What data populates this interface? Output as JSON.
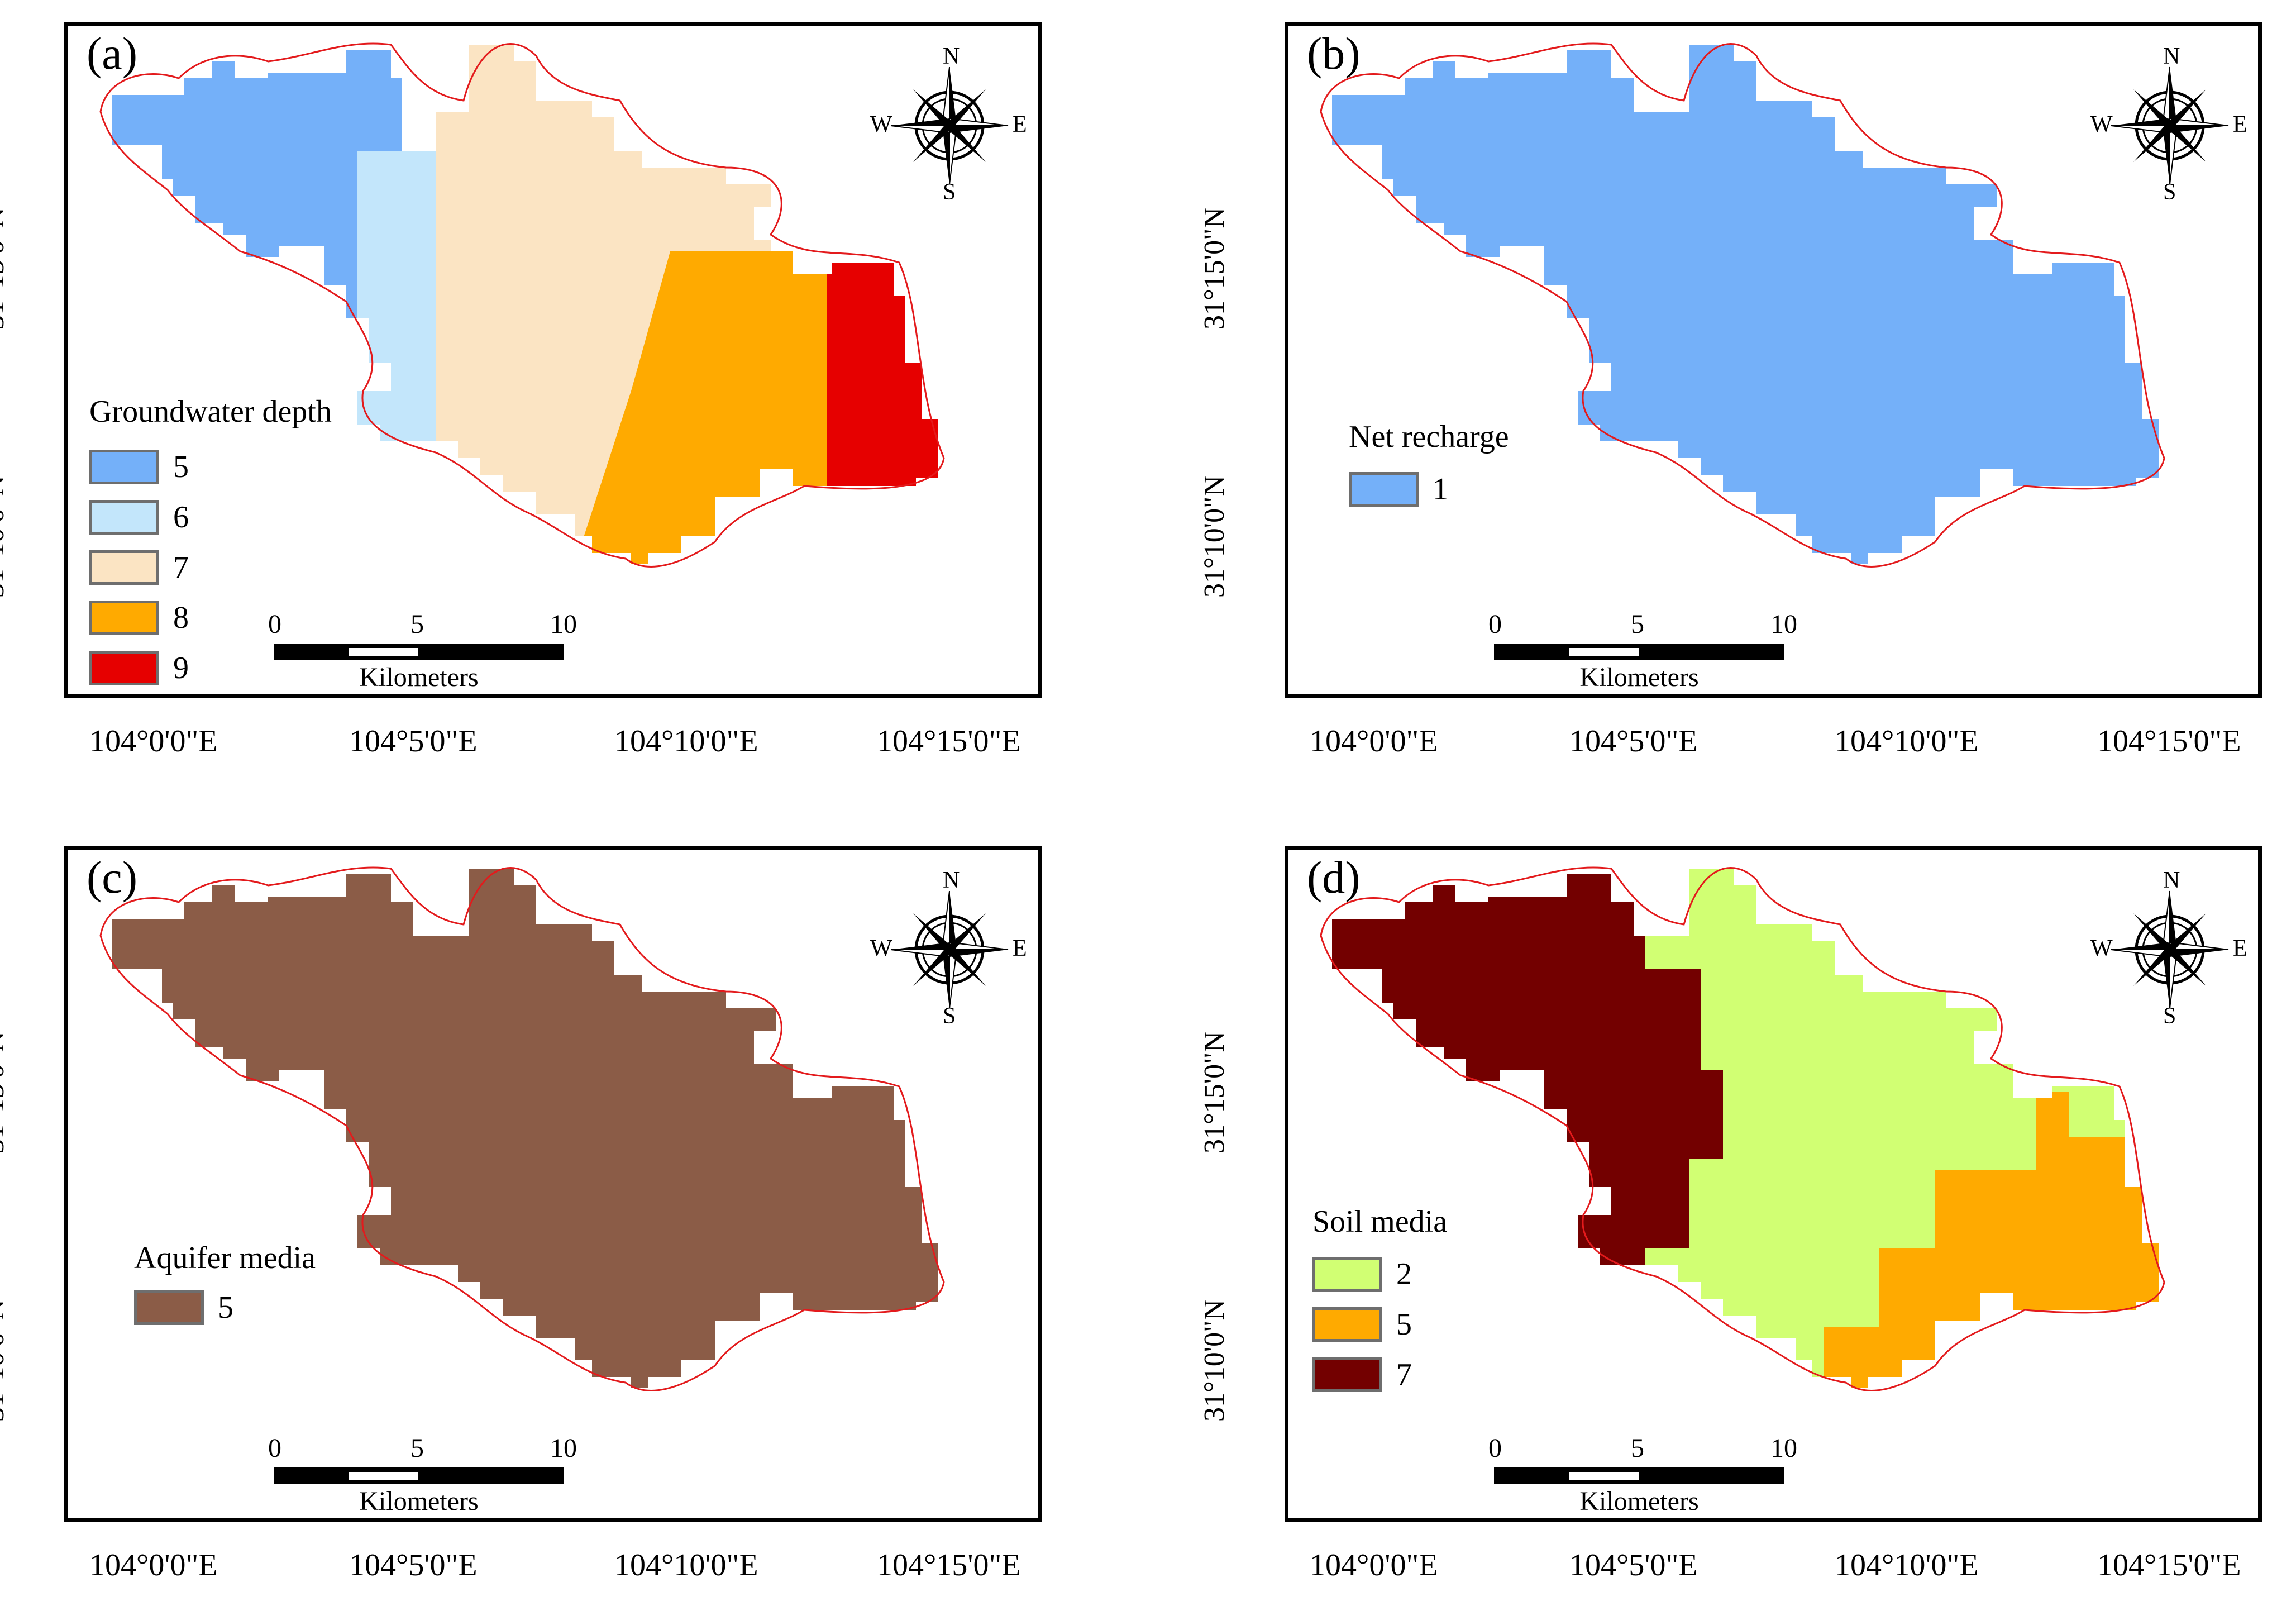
{
  "legend_colors": {
    "gw5": "#74b0f9",
    "gw6": "#c3e6fb",
    "gw7": "#fbe4c3",
    "gw8": "#ffaa00",
    "gw9": "#e60000",
    "net1": "#74b0f9",
    "aq5": "#8b5c47",
    "soil2": "#d1ff73",
    "soil5": "#ffaa00",
    "soil7": "#730000",
    "boundary": "#e31a1c"
  },
  "axes": {
    "x_ticks": [
      "104°0'0\"E",
      "104°5'0\"E",
      "104°10'0\"E",
      "104°15'0\"E"
    ],
    "y_ticks": [
      "31°15'0\"N",
      "31°10'0\"N"
    ]
  },
  "scale_bar": {
    "labels": [
      "0",
      "5",
      "10"
    ],
    "unit": "Kilometers"
  },
  "compass": {
    "n": "N",
    "s": "S",
    "e": "E",
    "w": "W",
    "icon": "compass-rose-icon"
  },
  "panels": [
    {
      "label": "(a)",
      "legend_title": "Groundwater depth",
      "legend": [
        {
          "value": "5",
          "color": "#74b0f9"
        },
        {
          "value": "6",
          "color": "#c3e6fb"
        },
        {
          "value": "7",
          "color": "#fbe4c3"
        },
        {
          "value": "8",
          "color": "#ffaa00"
        },
        {
          "value": "9",
          "color": "#e60000"
        }
      ]
    },
    {
      "label": "(b)",
      "legend_title": "Net recharge",
      "legend": [
        {
          "value": "1",
          "color": "#74b0f9"
        }
      ]
    },
    {
      "label": "(c)",
      "legend_title": "Aquifer media",
      "legend": [
        {
          "value": "5",
          "color": "#8b5c47"
        }
      ]
    },
    {
      "label": "(d)",
      "legend_title": "Soil media",
      "legend": [
        {
          "value": "2",
          "color": "#d1ff73"
        },
        {
          "value": "5",
          "color": "#ffaa00"
        },
        {
          "value": "7",
          "color": "#730000"
        }
      ]
    }
  ]
}
